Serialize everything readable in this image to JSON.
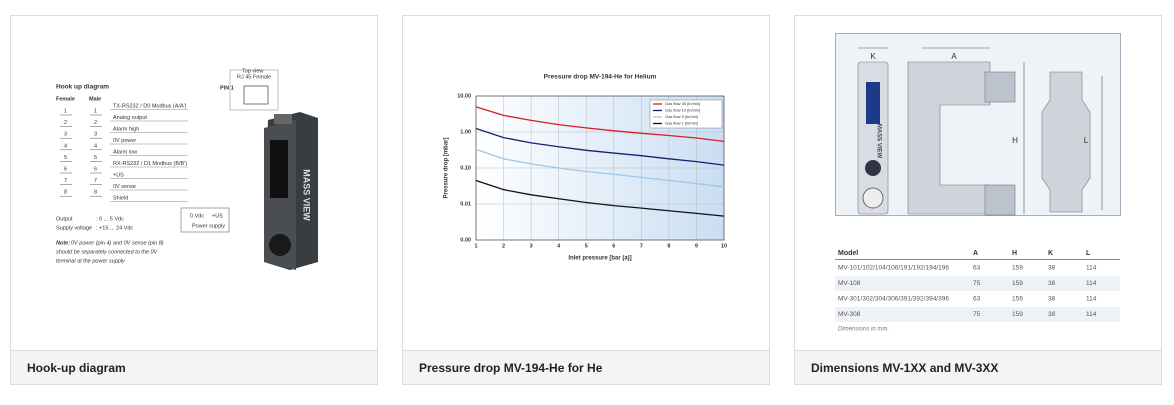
{
  "captions": [
    "Hook-up diagram",
    "Pressure drop MV-194-He for He",
    "Dimensions MV-1XX and MV-3XX"
  ],
  "hookup": {
    "title": "Hook up diagram",
    "female": "Female",
    "male": "Male",
    "pins": [
      "1",
      "2",
      "3",
      "4",
      "5",
      "6",
      "7",
      "8"
    ],
    "signals": [
      "TX-RS232 / D0 Modbus (A/A')",
      "Analog output",
      "Alarm high",
      "0V power",
      "Alarm low",
      "RX-RS232 / D1 Modbus (B/B')",
      "+US",
      "0V sense",
      "Shield"
    ],
    "top_view": "Top view",
    "rj45": "RJ  45 Female",
    "pin1": "PIN 1",
    "zero_vdc": "0 Vdc",
    "plus_us": "+US",
    "power_supply": "Power supply",
    "specs": [
      [
        "Output",
        ": 0 ... 5 Vdc"
      ],
      [
        "Supply voltage",
        ": +15 ... 24 Vdc"
      ]
    ],
    "note_label": "Note:",
    "note": [
      "0V power (pin 4) and 0V sense (pin 8)",
      "should be separately connected to the 0V",
      "terminal at the power supply"
    ],
    "brand": "MASS VIEW"
  },
  "chart_data": {
    "type": "line",
    "title": "Pressure drop MV-194-He for Helium",
    "x_label": "Inlet pressure [bar (a)]",
    "y_label": "Pressure drop [mbar]",
    "x": [
      1,
      2,
      3,
      4,
      5,
      6,
      7,
      8,
      9,
      10
    ],
    "xlim": [
      1,
      10
    ],
    "xticks": [
      1,
      2,
      3,
      4,
      5,
      6,
      7,
      8,
      9,
      10
    ],
    "ylim": [
      0.001,
      10
    ],
    "log_y": true,
    "grid": true,
    "legend": "upper right",
    "yticks": [
      {
        "value": 0.001,
        "label": "0.00"
      },
      {
        "value": 0.01,
        "label": "0.01"
      },
      {
        "value": 0.1,
        "label": "0.10"
      },
      {
        "value": 1,
        "label": "1.00"
      },
      {
        "value": 10,
        "label": "10.00"
      }
    ],
    "series": [
      {
        "name": "Gas flow 30 [ln/min]",
        "color": "#d42020",
        "values": [
          5,
          2.9,
          2.1,
          1.6,
          1.3,
          1.08,
          0.92,
          0.8,
          0.68,
          0.55
        ]
      },
      {
        "name": "Gas flow 10 [ln/min]",
        "color": "#1a1f6e",
        "values": [
          1.25,
          0.7,
          0.5,
          0.39,
          0.31,
          0.26,
          0.22,
          0.18,
          0.15,
          0.12
        ]
      },
      {
        "name": "Gas flow 3 [ln/min]",
        "color": "#9cc8ea",
        "values": [
          0.33,
          0.18,
          0.13,
          0.1,
          0.08,
          0.067,
          0.055,
          0.045,
          0.037,
          0.03
        ]
      },
      {
        "name": "Gas flow 1 [ln/min]",
        "color": "#111111",
        "values": [
          0.045,
          0.025,
          0.018,
          0.014,
          0.011,
          0.009,
          0.0077,
          0.0065,
          0.0055,
          0.0046
        ]
      }
    ]
  },
  "dims": {
    "k": "K",
    "a": "A",
    "h": "H",
    "l": "L",
    "table": {
      "header": [
        "Model",
        "A",
        "H",
        "K",
        "L"
      ],
      "rows": [
        [
          "MV-101/102/104/106/191/192/194/196",
          "63",
          "159",
          "38",
          "114"
        ],
        [
          "MV-108",
          "75",
          "159",
          "38",
          "114"
        ],
        [
          "MV-301/302/304/306/391/392/394/396",
          "63",
          "159",
          "38",
          "114"
        ],
        [
          "MV-308",
          "75",
          "159",
          "38",
          "114"
        ]
      ]
    },
    "footnote": "Dimensions in mm."
  }
}
